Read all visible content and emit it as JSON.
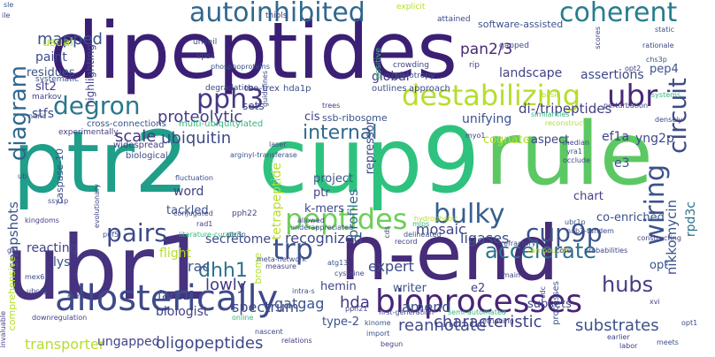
{
  "colors": {
    "purple": "#43237a",
    "darkviolet": "#482878",
    "indigo": "#3b528b",
    "blue": "#31688e",
    "teal": "#26828e",
    "sea": "#1f9e89",
    "green": "#35b779",
    "lime": "#6ece58",
    "olive": "#b5de2b",
    "yellow": "#c8d42a"
  },
  "words": [
    {
      "text": "dipeptides"
    },
    {
      "text": "ptr2"
    },
    {
      "text": "cup9"
    },
    {
      "text": "rule"
    },
    {
      "text": "ubr1"
    },
    {
      "text": "n-end"
    },
    {
      "text": "allosterically"
    },
    {
      "text": "bioprocesses"
    },
    {
      "text": "peptides"
    },
    {
      "text": "destabilizing"
    },
    {
      "text": "autoinhibited"
    },
    {
      "text": "coherent"
    },
    {
      "text": "degron"
    },
    {
      "text": "pph3"
    },
    {
      "text": "internal"
    },
    {
      "text": "pairs"
    },
    {
      "text": "bulky"
    },
    {
      "text": "cup9p"
    },
    {
      "text": "trp"
    },
    {
      "text": "accelerate"
    },
    {
      "text": "ubr"
    },
    {
      "text": "circuit"
    },
    {
      "text": "wiring"
    },
    {
      "text": "hubs"
    },
    {
      "text": "diagram"
    },
    {
      "text": "mapped"
    },
    {
      "text": "pan2/3"
    },
    {
      "text": "scale"
    },
    {
      "text": "ubiquitin"
    },
    {
      "text": "proteolytic"
    },
    {
      "text": "ligases"
    },
    {
      "text": "recognized"
    },
    {
      "text": "dhh1"
    },
    {
      "text": "reannotate"
    },
    {
      "text": "characteristic"
    },
    {
      "text": "oligopeptides"
    },
    {
      "text": "substrates"
    },
    {
      "text": "transporter"
    },
    {
      "text": "rac"
    },
    {
      "text": "lowly"
    },
    {
      "text": "spectrum"
    },
    {
      "text": "biologist"
    },
    {
      "text": "far11"
    },
    {
      "text": "hda"
    },
    {
      "text": "expert"
    },
    {
      "text": "amend"
    },
    {
      "text": "mosaic"
    },
    {
      "text": "profiles"
    },
    {
      "text": "gatgag"
    },
    {
      "text": "yng2p"
    },
    {
      "text": "ef1a"
    },
    {
      "text": "e3"
    },
    {
      "text": "di-/tripeptides"
    },
    {
      "text": "assertions"
    },
    {
      "text": "unifying"
    },
    {
      "text": "global"
    },
    {
      "text": "landscape"
    },
    {
      "text": "pep4"
    },
    {
      "text": "paint"
    },
    {
      "text": "usual"
    },
    {
      "text": "residues"
    },
    {
      "text": "slt2"
    },
    {
      "text": "stfs"
    },
    {
      "text": "snapshots"
    },
    {
      "text": "reacting"
    },
    {
      "text": "lys"
    },
    {
      "text": "flight"
    },
    {
      "text": "secretome"
    },
    {
      "text": "word"
    },
    {
      "text": "tackled"
    },
    {
      "text": "ptr"
    },
    {
      "text": "project"
    },
    {
      "text": "k-mers"
    },
    {
      "text": "tetrapeptide"
    },
    {
      "text": "co-enriched"
    },
    {
      "text": "hemin"
    },
    {
      "text": "writer"
    },
    {
      "text": "e2"
    },
    {
      "text": "subsets"
    },
    {
      "text": "type-2"
    },
    {
      "text": "ungapped"
    },
    {
      "text": "nikkomycin"
    },
    {
      "text": "rpd3c"
    },
    {
      "text": "opt"
    },
    {
      "text": "chart"
    },
    {
      "text": "aspect"
    },
    {
      "text": "cognate"
    },
    {
      "text": "repressor"
    },
    {
      "text": "software-assisted"
    },
    {
      "text": "highlighting"
    },
    {
      "text": "caspase-10"
    },
    {
      "text": "comprehensive"
    },
    {
      "text": "sets"
    },
    {
      "text": "cis"
    },
    {
      "text": "brome"
    },
    {
      "text": "ssb-ribosome"
    },
    {
      "text": "tho-trex"
    },
    {
      "text": "cross-connections"
    },
    {
      "text": "multi-ubiquitylated"
    },
    {
      "text": "biological"
    },
    {
      "text": "widespread"
    },
    {
      "text": "degradation"
    },
    {
      "text": "outlines"
    },
    {
      "text": "approach"
    },
    {
      "text": "markov"
    },
    {
      "text": "systematic"
    },
    {
      "text": "experimentally"
    },
    {
      "text": "hda1p"
    },
    {
      "text": "vps4"
    },
    {
      "text": "unveil"
    },
    {
      "text": "phosphoproteins"
    },
    {
      "text": "thiols"
    },
    {
      "text": "positive"
    },
    {
      "text": "explicit"
    },
    {
      "text": "attained"
    },
    {
      "text": "crowding"
    },
    {
      "text": "pleiotropy"
    },
    {
      "text": "rip"
    },
    {
      "text": "gapped"
    },
    {
      "text": "scores"
    },
    {
      "text": "static"
    },
    {
      "text": "rationale"
    },
    {
      "text": "opt2"
    },
    {
      "text": "chs3p"
    },
    {
      "text": "densely"
    },
    {
      "text": "reconstruct"
    },
    {
      "text": "similarities"
    },
    {
      "text": "guidelines"
    },
    {
      "text": "import"
    },
    {
      "text": "begun"
    },
    {
      "text": "trees"
    },
    {
      "text": "laser"
    },
    {
      "text": "arginyl-transferase"
    },
    {
      "text": "myo1"
    },
    {
      "text": "median"
    },
    {
      "text": "yra1"
    },
    {
      "text": "occlude"
    },
    {
      "text": "cds"
    },
    {
      "text": "record"
    },
    {
      "text": "mips"
    },
    {
      "text": "delineated"
    },
    {
      "text": "refractory"
    },
    {
      "text": "compounds"
    },
    {
      "text": "core"
    },
    {
      "text": "probabilities"
    },
    {
      "text": "ubr1p"
    },
    {
      "text": "nab2-tandem"
    },
    {
      "text": "constructing"
    },
    {
      "text": "allowed"
    },
    {
      "text": "underappreciated"
    },
    {
      "text": "conjugated"
    },
    {
      "text": "rad1"
    },
    {
      "text": "pph22"
    },
    {
      "text": "literature-curated"
    },
    {
      "text": "puf5"
    },
    {
      "text": "ssy1p"
    },
    {
      "text": "kingdoms"
    },
    {
      "text": "evolutionary"
    },
    {
      "text": "ptr3p"
    },
    {
      "text": "meta-network"
    },
    {
      "text": "measure"
    },
    {
      "text": "cysteine"
    },
    {
      "text": "atg13"
    },
    {
      "text": "mex67"
    },
    {
      "text": "mrnas"
    },
    {
      "text": "downregulation"
    },
    {
      "text": "online"
    },
    {
      "text": "intra-s"
    },
    {
      "text": "nascent"
    },
    {
      "text": "relations"
    },
    {
      "text": "pph21"
    },
    {
      "text": "kinome"
    },
    {
      "text": "first-generation"
    },
    {
      "text": "semi-automated"
    },
    {
      "text": "retrieving"
    },
    {
      "text": "main"
    },
    {
      "text": "processes"
    },
    {
      "text": "cdc"
    },
    {
      "text": "labor"
    },
    {
      "text": "earlier"
    },
    {
      "text": "meets"
    },
    {
      "text": "opt1"
    },
    {
      "text": "invaluable"
    },
    {
      "text": "xvi"
    },
    {
      "text": "sle"
    },
    {
      "text": "basic"
    },
    {
      "text": "systems"
    },
    {
      "text": "perturbation"
    },
    {
      "text": "ile"
    },
    {
      "text": "nitric"
    },
    {
      "text": "ub"
    },
    {
      "text": "gly"
    },
    {
      "text": "ubc4p"
    },
    {
      "text": "hydrophobic"
    },
    {
      "text": "fluctuation"
    }
  ]
}
